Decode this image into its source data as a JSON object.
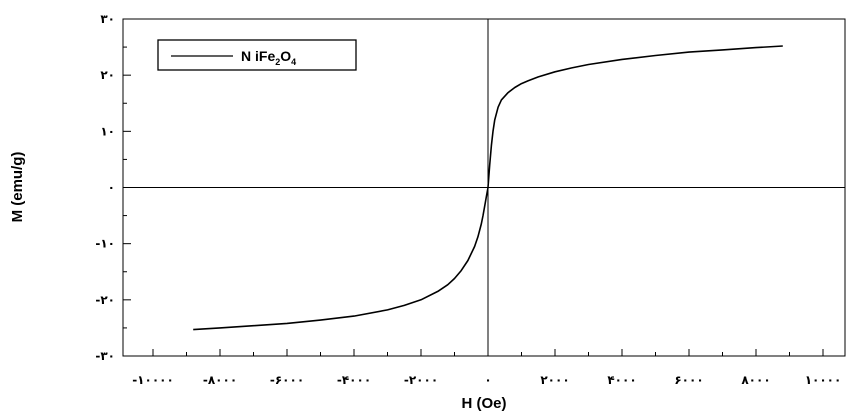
{
  "chart_data": {
    "type": "line",
    "xlabel": "H (Oe)",
    "ylabel": "M (emu/g)",
    "xlim": [
      -10000,
      10000
    ],
    "ylim": [
      -30,
      30
    ],
    "x_ticks": [
      {
        "value": -10000,
        "label": "-۱۰۰۰۰"
      },
      {
        "value": -8000,
        "label": "-۸۰۰۰"
      },
      {
        "value": -6000,
        "label": "-۶۰۰۰"
      },
      {
        "value": -4000,
        "label": "-۴۰۰۰"
      },
      {
        "value": -2000,
        "label": "-۲۰۰۰"
      },
      {
        "value": 0,
        "label": "۰"
      },
      {
        "value": 2000,
        "label": "۲۰۰۰"
      },
      {
        "value": 4000,
        "label": "۴۰۰۰"
      },
      {
        "value": 6000,
        "label": "۶۰۰۰"
      },
      {
        "value": 8000,
        "label": "۸۰۰۰"
      },
      {
        "value": 10000,
        "label": "۱۰۰۰۰"
      }
    ],
    "y_ticks": [
      {
        "value": 30,
        "label": "۳۰"
      },
      {
        "value": 20,
        "label": "۲۰"
      },
      {
        "value": 10,
        "label": "۱۰"
      },
      {
        "value": 0,
        "label": "۰"
      },
      {
        "value": -10,
        "label": "-۱۰"
      },
      {
        "value": -20,
        "label": "-۲۰"
      },
      {
        "value": -30,
        "label": "-۳۰"
      }
    ],
    "legend": {
      "position": "top-left",
      "formula_parts": [
        "N iFe",
        "2",
        "O",
        "4"
      ]
    },
    "zero_lines": true,
    "grid": false,
    "series": [
      {
        "name": "NiFe2O4",
        "color": "#000000",
        "x": [
          -8800,
          -8000,
          -7000,
          -6000,
          -5000,
          -4000,
          -3000,
          -2500,
          -2000,
          -1500,
          -1200,
          -1000,
          -800,
          -600,
          -400,
          -300,
          -200,
          -150,
          -100,
          -50,
          0,
          50,
          100,
          150,
          200,
          300,
          400,
          600,
          800,
          1000,
          1200,
          1500,
          2000,
          2500,
          3000,
          4000,
          5000,
          6000,
          7000,
          8000,
          8800
        ],
        "y": [
          -25.3,
          -25.0,
          -24.6,
          -24.2,
          -23.6,
          -22.9,
          -21.8,
          -21.0,
          -20.0,
          -18.5,
          -17.3,
          -16.2,
          -14.8,
          -13.0,
          -10.5,
          -8.8,
          -6.5,
          -5.0,
          -3.4,
          -1.7,
          0,
          4.0,
          7.5,
          10.0,
          12.0,
          14.3,
          15.6,
          16.9,
          17.8,
          18.5,
          19.0,
          19.7,
          20.6,
          21.3,
          21.9,
          22.8,
          23.5,
          24.1,
          24.5,
          24.9,
          25.2
        ]
      }
    ]
  }
}
